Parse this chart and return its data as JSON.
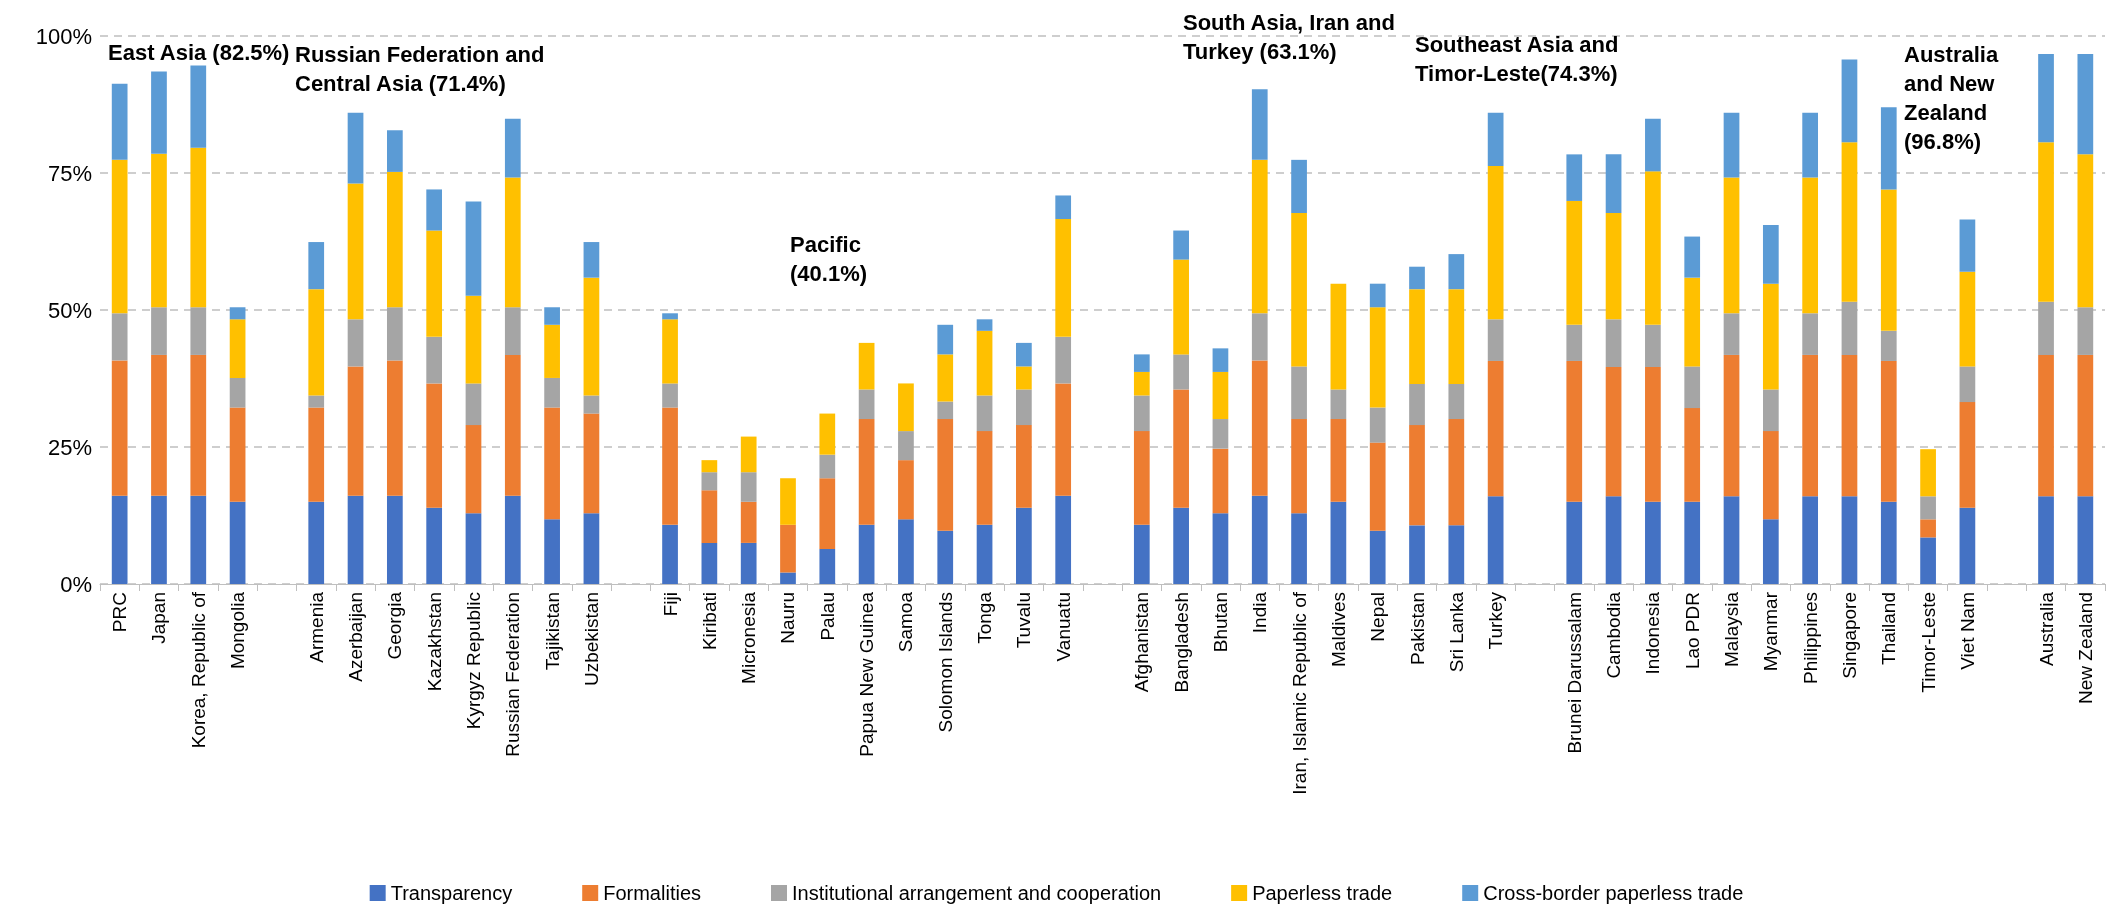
{
  "chart_data": {
    "type": "bar",
    "stacked": true,
    "categories": [
      "PRC",
      "Japan",
      "Korea, Republic of",
      "Mongolia",
      null,
      "Armenia",
      "Azerbaijan",
      "Georgia",
      "Kazakhstan",
      "Kyrgyz Republic",
      "Russian Federation",
      "Tajikistan",
      "Uzbekistan",
      null,
      "Fiji",
      "Kiribati",
      "Micronesia",
      "Nauru",
      "Palau",
      "Papua New Guinea",
      "Samoa",
      "Solomon Islands",
      "Tonga",
      "Tuvalu",
      "Vanuatu",
      null,
      "Afghanistan",
      "Bangladesh",
      "Bhutan",
      "India",
      "Iran, Islamic Republic of",
      "Maldives",
      "Nepal",
      "Pakistan",
      "Sri Lanka",
      "Turkey",
      null,
      "Brunei Darussalam",
      "Cambodia",
      "Indonesia",
      "Lao PDR",
      "Malaysia",
      "Myanmar",
      "Philippines",
      "Singapore",
      "Thailand",
      "Timor-Leste",
      "Viet Nam",
      null,
      "Australia",
      "New Zealand"
    ],
    "series": [
      {
        "name": "Transparency",
        "color": "#4472c4",
        "values": [
          16.1,
          16.1,
          16.1,
          15.0,
          null,
          15.0,
          16.1,
          16.1,
          13.9,
          12.9,
          16.1,
          11.8,
          12.9,
          null,
          10.8,
          7.5,
          7.5,
          2.1,
          6.4,
          10.8,
          11.8,
          9.7,
          10.8,
          13.9,
          16.1,
          null,
          10.8,
          13.9,
          12.9,
          16.1,
          12.9,
          15.0,
          9.7,
          10.7,
          10.7,
          16.0,
          null,
          15.0,
          16.0,
          15.0,
          15.0,
          16.0,
          11.8,
          16.0,
          16.0,
          15.0,
          8.5,
          13.9,
          null,
          16.0,
          16.0
        ]
      },
      {
        "name": "Formalities",
        "color": "#ed7d31",
        "values": [
          24.7,
          25.7,
          25.7,
          17.2,
          null,
          17.2,
          23.6,
          24.7,
          22.7,
          16.1,
          25.7,
          20.4,
          18.2,
          null,
          21.4,
          9.6,
          7.5,
          8.7,
          12.9,
          19.3,
          10.8,
          20.4,
          17.1,
          15.1,
          20.5,
          null,
          17.1,
          21.6,
          11.8,
          24.7,
          17.2,
          15.1,
          16.1,
          18.3,
          19.4,
          24.7,
          null,
          25.7,
          23.6,
          24.6,
          17.1,
          25.8,
          16.1,
          25.8,
          25.8,
          25.7,
          3.3,
          19.3,
          null,
          25.8,
          25.8
        ]
      },
      {
        "name": "Institutional arrangement and cooperation",
        "color": "#a5a5a5",
        "values": [
          8.6,
          8.7,
          8.7,
          5.4,
          null,
          2.2,
          8.6,
          9.7,
          8.5,
          7.6,
          8.7,
          5.4,
          3.3,
          null,
          4.4,
          3.3,
          5.4,
          0,
          4.3,
          5.4,
          5.3,
          3.2,
          6.5,
          6.5,
          8.5,
          null,
          6.5,
          6.4,
          5.4,
          8.6,
          9.6,
          5.4,
          6.4,
          7.5,
          6.4,
          7.6,
          null,
          6.6,
          8.7,
          7.7,
          7.6,
          7.6,
          7.6,
          7.6,
          9.7,
          5.5,
          4.2,
          6.5,
          null,
          9.7,
          8.7
        ]
      },
      {
        "name": "Paperless trade",
        "color": "#ffc000",
        "values": [
          28.0,
          28.0,
          29.1,
          10.7,
          null,
          19.4,
          24.8,
          24.7,
          19.4,
          16.0,
          23.7,
          9.7,
          21.5,
          null,
          11.7,
          2.2,
          6.5,
          8.5,
          7.5,
          8.5,
          8.7,
          8.6,
          11.8,
          4.2,
          21.5,
          null,
          4.3,
          17.3,
          8.6,
          28.0,
          28.0,
          19.3,
          18.3,
          17.3,
          17.3,
          28.0,
          null,
          22.6,
          19.4,
          28.0,
          16.2,
          24.8,
          19.3,
          24.8,
          29.1,
          25.8,
          8.6,
          17.3,
          null,
          29.1,
          27.9
        ]
      },
      {
        "name": "Cross-border paperless trade",
        "color": "#5b9bd5",
        "values": [
          13.9,
          15.0,
          15.0,
          2.2,
          null,
          8.6,
          12.9,
          7.6,
          7.5,
          17.2,
          10.7,
          3.2,
          6.5,
          null,
          1.1,
          0,
          0,
          0,
          0,
          0,
          0,
          5.4,
          2.1,
          4.3,
          4.3,
          null,
          3.2,
          5.3,
          4.3,
          12.9,
          9.7,
          0,
          4.3,
          4.1,
          6.4,
          9.7,
          null,
          8.5,
          10.7,
          9.6,
          7.5,
          11.8,
          10.7,
          11.8,
          15.1,
          15.0,
          0,
          9.5,
          null,
          16.1,
          18.3
        ]
      }
    ],
    "ylim": [
      0,
      100
    ],
    "yticks": [
      {
        "value": 0,
        "label": "0%"
      },
      {
        "value": 25,
        "label": "25%"
      },
      {
        "value": 50,
        "label": "50%"
      },
      {
        "value": 75,
        "label": "75%"
      },
      {
        "value": 100,
        "label": "100%"
      }
    ],
    "grid": "y",
    "legend": "bottom",
    "annotations": [
      "East Asia (82.5%)",
      "Russian Federation and Central Asia (71.4%)",
      "Pacific (40.1%)",
      "South Asia, Iran and Turkey (63.1%)",
      "Southeast Asia and Timor-Leste(74.3%)",
      "Australia and New Zealand (96.8%)"
    ]
  }
}
